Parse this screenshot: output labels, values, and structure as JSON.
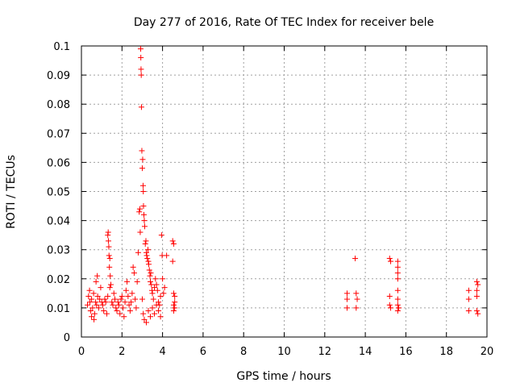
{
  "chart_data": {
    "type": "scatter",
    "title": "Day 277 of 2016, Rate Of TEC Index for receiver bele",
    "xlabel": "GPS time / hours",
    "ylabel": "ROTI / TECUs",
    "xlim": [
      0,
      20
    ],
    "ylim": [
      0,
      0.1
    ],
    "xticks": [
      0,
      2,
      4,
      6,
      8,
      10,
      12,
      14,
      16,
      18,
      20
    ],
    "yticks": [
      0,
      0.01,
      0.02,
      0.03,
      0.04,
      0.05,
      0.06,
      0.07,
      0.08,
      0.09,
      0.1
    ],
    "xtick_labels": [
      "0",
      "2",
      "4",
      "6",
      "8",
      "10",
      "12",
      "14",
      "16",
      "18",
      "20"
    ],
    "ytick_labels": [
      "0",
      "0.01",
      "0.02",
      "0.03",
      "0.04",
      "0.05",
      "0.06",
      "0.07",
      "0.08",
      "0.09",
      "0.1"
    ],
    "grid": true,
    "marker": "+",
    "color": "#ff0000",
    "series": [
      {
        "name": "ROTI",
        "points": [
          [
            0.3,
            0.011
          ],
          [
            0.35,
            0.014
          ],
          [
            0.4,
            0.016
          ],
          [
            0.42,
            0.012
          ],
          [
            0.45,
            0.009
          ],
          [
            0.5,
            0.013
          ],
          [
            0.55,
            0.01
          ],
          [
            0.6,
            0.015
          ],
          [
            0.65,
            0.008
          ],
          [
            0.7,
            0.012
          ],
          [
            0.75,
            0.011
          ],
          [
            0.8,
            0.014
          ],
          [
            0.85,
            0.01
          ],
          [
            0.9,
            0.013
          ],
          [
            0.95,
            0.017
          ],
          [
            1.0,
            0.012
          ],
          [
            0.72,
            0.019
          ],
          [
            0.78,
            0.021
          ],
          [
            0.5,
            0.007
          ],
          [
            0.62,
            0.006
          ],
          [
            1.05,
            0.011
          ],
          [
            1.1,
            0.009
          ],
          [
            1.15,
            0.013
          ],
          [
            1.2,
            0.012
          ],
          [
            1.25,
            0.008
          ],
          [
            1.3,
            0.035
          ],
          [
            1.32,
            0.036
          ],
          [
            1.33,
            0.033
          ],
          [
            1.35,
            0.031
          ],
          [
            1.36,
            0.028
          ],
          [
            1.38,
            0.024
          ],
          [
            1.4,
            0.027
          ],
          [
            1.42,
            0.021
          ],
          [
            1.45,
            0.018
          ],
          [
            1.4,
            0.017
          ],
          [
            1.3,
            0.014
          ],
          [
            1.5,
            0.012
          ],
          [
            1.55,
            0.011
          ],
          [
            1.6,
            0.015
          ],
          [
            1.65,
            0.013
          ],
          [
            1.7,
            0.01
          ],
          [
            1.75,
            0.009
          ],
          [
            1.8,
            0.012
          ],
          [
            1.85,
            0.011
          ],
          [
            1.9,
            0.008
          ],
          [
            1.95,
            0.013
          ],
          [
            2.0,
            0.014
          ],
          [
            2.05,
            0.01
          ],
          [
            2.1,
            0.007
          ],
          [
            2.15,
            0.012
          ],
          [
            2.2,
            0.016
          ],
          [
            2.25,
            0.019
          ],
          [
            2.3,
            0.014
          ],
          [
            2.35,
            0.011
          ],
          [
            2.4,
            0.009
          ],
          [
            2.45,
            0.012
          ],
          [
            2.5,
            0.015
          ],
          [
            2.55,
            0.024
          ],
          [
            2.6,
            0.022
          ],
          [
            2.65,
            0.013
          ],
          [
            2.7,
            0.01
          ],
          [
            2.75,
            0.019
          ],
          [
            2.8,
            0.029
          ],
          [
            2.85,
            0.043
          ],
          [
            2.88,
            0.044
          ],
          [
            2.9,
            0.036
          ],
          [
            2.92,
            0.099
          ],
          [
            2.93,
            0.096
          ],
          [
            2.94,
            0.092
          ],
          [
            2.95,
            0.09
          ],
          [
            2.96,
            0.079
          ],
          [
            2.98,
            0.064
          ],
          [
            3.0,
            0.058
          ],
          [
            3.02,
            0.061
          ],
          [
            3.04,
            0.052
          ],
          [
            3.05,
            0.05
          ],
          [
            3.06,
            0.045
          ],
          [
            3.08,
            0.042
          ],
          [
            3.1,
            0.04
          ],
          [
            3.12,
            0.038
          ],
          [
            3.15,
            0.032
          ],
          [
            3.18,
            0.033
          ],
          [
            3.2,
            0.029
          ],
          [
            3.22,
            0.028
          ],
          [
            3.25,
            0.027
          ],
          [
            3.28,
            0.03
          ],
          [
            3.3,
            0.026
          ],
          [
            3.32,
            0.025
          ],
          [
            3.35,
            0.023
          ],
          [
            3.38,
            0.021
          ],
          [
            3.4,
            0.019
          ],
          [
            3.42,
            0.022
          ],
          [
            3.45,
            0.018
          ],
          [
            3.48,
            0.016
          ],
          [
            3.5,
            0.015
          ],
          [
            3.55,
            0.013
          ],
          [
            3.6,
            0.017
          ],
          [
            3.65,
            0.02
          ],
          [
            3.7,
            0.018
          ],
          [
            3.75,
            0.016
          ],
          [
            3.8,
            0.012
          ],
          [
            3.85,
            0.011
          ],
          [
            3.9,
            0.014
          ],
          [
            3.95,
            0.035
          ],
          [
            3.98,
            0.028
          ],
          [
            4.0,
            0.02
          ],
          [
            4.05,
            0.015
          ],
          [
            4.1,
            0.017
          ],
          [
            4.2,
            0.028
          ],
          [
            3.0,
            0.013
          ],
          [
            3.05,
            0.008
          ],
          [
            3.1,
            0.006
          ],
          [
            3.2,
            0.005
          ],
          [
            3.3,
            0.009
          ],
          [
            3.4,
            0.007
          ],
          [
            3.5,
            0.01
          ],
          [
            3.6,
            0.008
          ],
          [
            3.7,
            0.011
          ],
          [
            3.8,
            0.009
          ],
          [
            3.9,
            0.007
          ],
          [
            4.5,
            0.033
          ],
          [
            4.55,
            0.032
          ],
          [
            4.5,
            0.026
          ],
          [
            4.55,
            0.015
          ],
          [
            4.6,
            0.014
          ],
          [
            4.6,
            0.012
          ],
          [
            4.55,
            0.011
          ],
          [
            4.6,
            0.01
          ],
          [
            4.55,
            0.009
          ],
          [
            13.1,
            0.015
          ],
          [
            13.1,
            0.013
          ],
          [
            13.1,
            0.01
          ],
          [
            13.5,
            0.027
          ],
          [
            13.55,
            0.015
          ],
          [
            13.6,
            0.013
          ],
          [
            13.55,
            0.01
          ],
          [
            15.2,
            0.027
          ],
          [
            15.25,
            0.026
          ],
          [
            15.2,
            0.014
          ],
          [
            15.2,
            0.011
          ],
          [
            15.25,
            0.01
          ],
          [
            15.6,
            0.026
          ],
          [
            15.6,
            0.024
          ],
          [
            15.6,
            0.022
          ],
          [
            15.6,
            0.02
          ],
          [
            15.6,
            0.016
          ],
          [
            15.6,
            0.013
          ],
          [
            15.6,
            0.011
          ],
          [
            15.6,
            0.009
          ],
          [
            15.65,
            0.01
          ],
          [
            19.1,
            0.016
          ],
          [
            19.1,
            0.013
          ],
          [
            19.1,
            0.009
          ],
          [
            19.5,
            0.019
          ],
          [
            19.55,
            0.018
          ],
          [
            19.5,
            0.016
          ],
          [
            19.5,
            0.014
          ],
          [
            19.5,
            0.009
          ],
          [
            19.55,
            0.008
          ]
        ]
      }
    ]
  }
}
